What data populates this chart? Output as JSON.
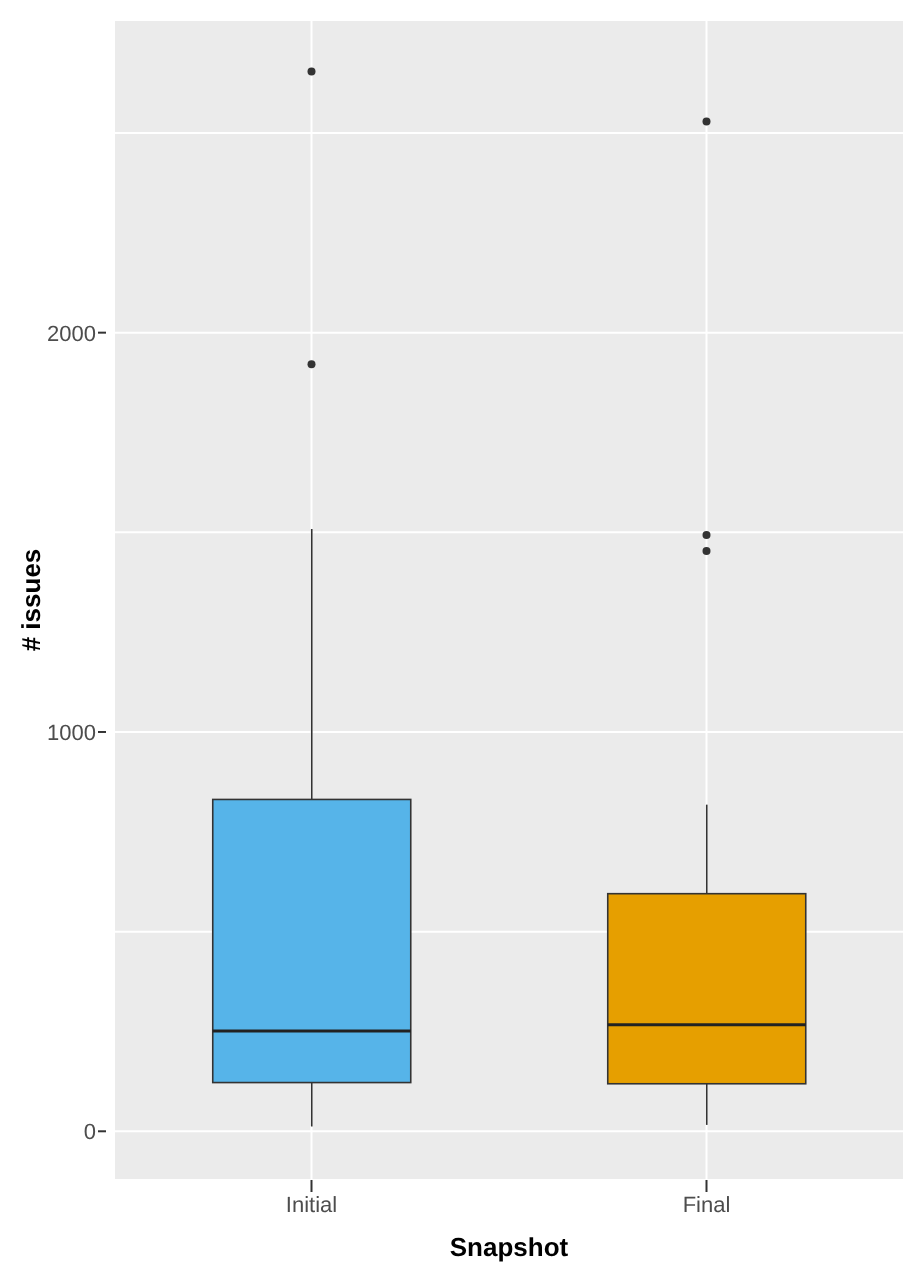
{
  "chart_data": {
    "type": "box",
    "xlabel": "Snapshot",
    "ylabel": "# issues",
    "categories": [
      "Initial",
      "Final"
    ],
    "colors": [
      "#56b4e9",
      "#e69f00"
    ],
    "boxes": [
      {
        "low": 12,
        "q1": 122,
        "median": 251,
        "q3": 831,
        "high": 1508,
        "outliers": [
          1921,
          2654
        ]
      },
      {
        "low": 16,
        "q1": 119,
        "median": 267,
        "q3": 595,
        "high": 818,
        "outliers": [
          1453,
          1493,
          2529
        ]
      }
    ],
    "ylim": [
      -122,
      2783
    ],
    "yticks": [
      0,
      {
        "value": 500,
        "label": null
      },
      1000,
      {
        "value": 1500,
        "label": null
      },
      2000,
      {
        "value": 2500,
        "label": null
      }
    ],
    "grid": true
  }
}
